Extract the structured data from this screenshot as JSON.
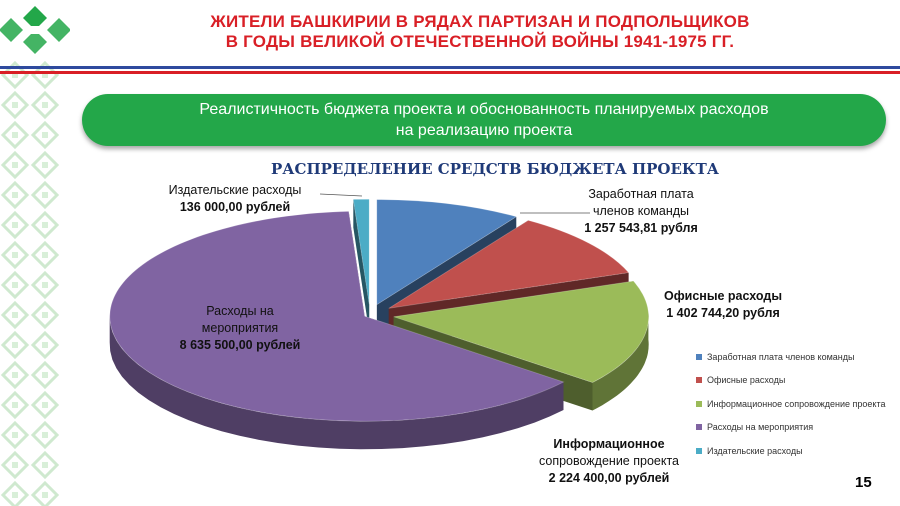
{
  "header": {
    "title_line1": "ЖИТЕЛИ БАШКИРИИ В РЯДАХ ПАРТИЗАН И ПОДПОЛЬЩИКОВ",
    "title_line2": "В ГОДЫ ВЕЛИКОЙ ОТЕЧЕСТВЕННОЙ ВОЙНЫ 1941-1975 ГГ."
  },
  "banner": {
    "line1": "Реалистичность бюджета проекта и обоснованность планируемых расходов",
    "line2": "на реализацию проекта"
  },
  "colors": {
    "header_red": "#d91f26",
    "rule_blue": "#2e4a9e",
    "banner_green": "#23a749",
    "chart_title_blue": "#1f3a78"
  },
  "chart_data": {
    "type": "pie",
    "title": "РАСПРЕДЕЛЕНИЕ СРЕДСТВ БЮДЖЕТА ПРОЕКТА",
    "three_d": true,
    "exploded": true,
    "legend_position": "right",
    "slices": [
      {
        "name": "Заработная плата членов команды",
        "label_lines": [
          "Заработная плата",
          "членов команды"
        ],
        "value_text": "1 257 543,81 рубля",
        "value": 1257543.81,
        "color": "#4f81bd"
      },
      {
        "name": "Офисные расходы",
        "label_lines": [
          "Офисные расходы"
        ],
        "value_text": "1 402 744,20 рубля",
        "value": 1402744.2,
        "color": "#c0504d"
      },
      {
        "name": "Информационное сопровождение проекта",
        "label_lines": [
          "Информационное",
          "сопровождение проекта"
        ],
        "value_text": "2 224 400,00 рублей",
        "value": 2224400.0,
        "color": "#9bbb59"
      },
      {
        "name": "Расходы на мероприятия",
        "label_lines": [
          "Расходы на",
          "мероприятия"
        ],
        "value_text": "8 635 500,00 рублей",
        "value": 8635500.0,
        "color": "#8064a2"
      },
      {
        "name": "Издательские расходы",
        "label_lines": [
          "Издательские  расходы"
        ],
        "value_text": "136 000,00 рублей",
        "value": 136000.0,
        "color": "#4bacc6"
      }
    ]
  },
  "page_number": "15"
}
